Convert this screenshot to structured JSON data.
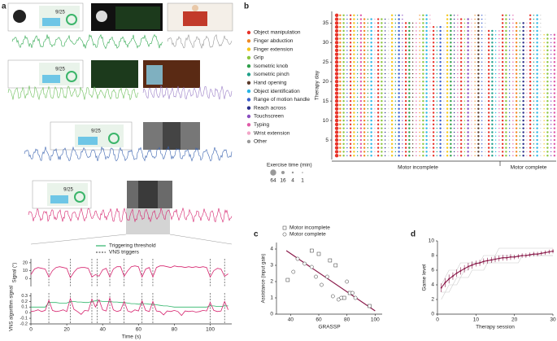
{
  "chart_data": [
    {
      "type": "timeseries",
      "panel": "a",
      "thumb_scores": [
        "9/25",
        "9/25",
        "9/25",
        "9/25"
      ],
      "xlabel": "Time (s)",
      "xlim": [
        0,
        112
      ],
      "xticks": [
        0,
        20,
        40,
        60,
        80,
        100
      ],
      "x": [
        0,
        2,
        4,
        6,
        8,
        10,
        12,
        14,
        16,
        18,
        20,
        22,
        24,
        26,
        28,
        30,
        32,
        34,
        36,
        38,
        40,
        42,
        44,
        46,
        48,
        50,
        52,
        54,
        56,
        58,
        60,
        62,
        64,
        66,
        68,
        70,
        72,
        74,
        76,
        78,
        80,
        82,
        84,
        86,
        88,
        90,
        92,
        94,
        96,
        98,
        100,
        102,
        104,
        106,
        108,
        110
      ],
      "triggers_name": "VNS triggers",
      "triggers": [
        10,
        22,
        34,
        37,
        44,
        52,
        62,
        68,
        100,
        108
      ],
      "subplots": [
        {
          "ylabel": "Signal (°)",
          "ylim": [
            -10,
            25
          ],
          "yticks": [
            0,
            10,
            20
          ],
          "series": [
            {
              "color": "#d6246e",
              "values": [
                5,
                12,
                14,
                13,
                12,
                2,
                10,
                14,
                15,
                14,
                13,
                1,
                8,
                13,
                14,
                14,
                13,
                2,
                5,
                3,
                11,
                13,
                2,
                12,
                15,
                15,
                3,
                10,
                15,
                16,
                15,
                2,
                12,
                14,
                2,
                14,
                16,
                16,
                15,
                14,
                16,
                15,
                15,
                14,
                15,
                14,
                15,
                14,
                15,
                14,
                2,
                10,
                13,
                12,
                3,
                6
              ]
            }
          ]
        },
        {
          "ylabel": "VNS algorithm signal",
          "ylim": [
            -0.2,
            0.35
          ],
          "yticks": [
            -0.2,
            -0.1,
            0,
            0.1,
            0.2,
            0.3
          ],
          "series": [
            {
              "name": "Triggering threshold",
              "color": "#2fb56a",
              "values": [
                0.1,
                0.1,
                0.1,
                0.1,
                0.1,
                0.18,
                0.18,
                0.18,
                0.17,
                0.17,
                0.17,
                0.2,
                0.2,
                0.19,
                0.19,
                0.18,
                0.18,
                0.2,
                0.21,
                0.21,
                0.2,
                0.2,
                0.2,
                0.19,
                0.19,
                0.18,
                0.18,
                0.17,
                0.16,
                0.16,
                0.15,
                0.16,
                0.16,
                0.15,
                0.15,
                0.14,
                0.13,
                0.12,
                0.12,
                0.11,
                0.1,
                0.1,
                0.1,
                0.1,
                0.1,
                0.1,
                0.1,
                0.1,
                0.1,
                0.1,
                0.12,
                0.12,
                0.11,
                0.11,
                0.12,
                0.12
              ]
            },
            {
              "color": "#d6246e",
              "values": [
                0.02,
                0.03,
                0.05,
                0.02,
                0.04,
                0.22,
                0.04,
                0.02,
                0.03,
                0.05,
                0.02,
                0.25,
                0.06,
                0.02,
                -0.03,
                0.04,
                0.03,
                0.24,
                0.1,
                0.23,
                0.05,
                0.03,
                0.26,
                0.05,
                0.02,
                0.04,
                0.2,
                0.03,
                0.01,
                0.05,
                0.03,
                0.21,
                0.04,
                0.02,
                0.2,
                0.03,
                0.02,
                -0.04,
                0.03,
                0.02,
                0.04,
                0.02,
                -0.05,
                0.03,
                0.02,
                0.03,
                0.01,
                0.02,
                0.04,
                0.03,
                0.18,
                0.04,
                0.02,
                0.03,
                0.2,
                0.05
              ]
            }
          ]
        }
      ]
    },
    {
      "type": "dotmatrix",
      "panel": "b",
      "ylabel": "Therapy day",
      "ylim": [
        0,
        38
      ],
      "yticks": [
        5,
        10,
        15,
        20,
        25,
        30,
        35
      ],
      "series": [
        {
          "name": "Object manipulation",
          "color": "#e8332a"
        },
        {
          "name": "Finger abduction",
          "color": "#f08a24"
        },
        {
          "name": "Finger extension",
          "color": "#f5c518"
        },
        {
          "name": "Grip",
          "color": "#8cc63f"
        },
        {
          "name": "Isometric knob",
          "color": "#2e9e4a"
        },
        {
          "name": "Isometric pinch",
          "color": "#1fa08a"
        },
        {
          "name": "Hand opening",
          "color": "#5a3a2a"
        },
        {
          "name": "Object identification",
          "color": "#29b6e6"
        },
        {
          "name": "Range of motion handle",
          "color": "#3a5fcd"
        },
        {
          "name": "Reach across",
          "color": "#2a2f8a"
        },
        {
          "name": "Touchscreen",
          "color": "#8a4fc0"
        },
        {
          "name": "Typing",
          "color": "#e05aa8"
        },
        {
          "name": "Wrist extension",
          "color": "#f2a6c8"
        },
        {
          "name": "Other",
          "color": "#9a9a9a"
        }
      ],
      "size_legend": {
        "title": "Exercise time (min)",
        "sizes": [
          64,
          16,
          4,
          1
        ]
      },
      "groups": [
        {
          "label": "Motor incomplete",
          "patients": [
            {
              "days": 37,
              "exercises": [
                0,
                1,
                3,
                8
              ],
              "minutes": [
                64,
                16,
                16,
                4
              ]
            },
            {
              "days": 37,
              "exercises": [
                0,
                2,
                5,
                11
              ],
              "minutes": [
                16,
                16,
                4,
                16
              ]
            },
            {
              "days": 36,
              "exercises": [
                1,
                4,
                7,
                12
              ],
              "minutes": [
                16,
                4,
                16,
                4
              ]
            },
            {
              "days": 36,
              "exercises": [
                0,
                3,
                9,
                13
              ],
              "minutes": [
                16,
                16,
                4,
                1
              ]
            },
            {
              "days": 37,
              "exercises": [
                2,
                5,
                8,
                10
              ],
              "minutes": [
                16,
                4,
                16,
                4
              ]
            },
            {
              "days": 35,
              "exercises": [
                0,
                4,
                6,
                11
              ],
              "minutes": [
                16,
                16,
                4,
                4
              ]
            },
            {
              "days": 37,
              "exercises": [
                1,
                3,
                7,
                12
              ],
              "minutes": [
                4,
                16,
                16,
                4
              ]
            },
            {
              "days": 34,
              "exercises": [
                0,
                5,
                8,
                13
              ],
              "minutes": [
                16,
                4,
                16,
                1
              ]
            },
            {
              "days": 37,
              "exercises": [
                2,
                4,
                9,
                11
              ],
              "minutes": [
                16,
                16,
                4,
                4
              ]
            },
            {
              "days": 36,
              "exercises": [
                0,
                3,
                10,
                12
              ],
              "minutes": [
                16,
                4,
                16,
                4
              ]
            },
            {
              "days": 37,
              "exercises": [
                1,
                6,
                8,
                13
              ],
              "minutes": [
                4,
                16,
                4,
                1
              ]
            },
            {
              "days": 33,
              "exercises": [
                0,
                5,
                7,
                11
              ],
              "minutes": [
                16,
                16,
                4,
                4
              ]
            }
          ]
        },
        {
          "label": "Motor complete",
          "patients": [
            {
              "days": 37,
              "exercises": [
                0,
                3,
                8,
                11
              ],
              "minutes": [
                16,
                16,
                4,
                4
              ]
            },
            {
              "days": 35,
              "exercises": [
                1,
                4,
                9,
                12
              ],
              "minutes": [
                16,
                4,
                16,
                4
              ]
            },
            {
              "days": 37,
              "exercises": [
                0,
                5,
                7,
                13
              ],
              "minutes": [
                16,
                4,
                16,
                1
              ]
            },
            {
              "days": 32,
              "exercises": [
                2,
                3,
                10,
                11
              ],
              "minutes": [
                4,
                16,
                4,
                16
              ]
            }
          ]
        }
      ]
    },
    {
      "type": "scatter",
      "panel": "c",
      "xlabel": "GRASSP",
      "ylabel": "Assistance (input gain)",
      "xlim": [
        30,
        105
      ],
      "xticks": [
        40,
        60,
        80,
        100
      ],
      "ylim": [
        0,
        4.4
      ],
      "yticks": [
        0,
        1,
        2,
        3,
        4
      ],
      "series": [
        {
          "name": "Motor incomplete",
          "marker": "square",
          "x": [
            38,
            55,
            60,
            68,
            72,
            78,
            82,
            96
          ],
          "values": [
            2.1,
            3.9,
            3.7,
            3.3,
            3.0,
            1.0,
            1.3,
            0.5
          ]
        },
        {
          "name": "Motor complete",
          "marker": "circle",
          "x": [
            42,
            45,
            50,
            55,
            58,
            62,
            66,
            70,
            74,
            76,
            80,
            84,
            86
          ],
          "values": [
            2.6,
            3.4,
            3.1,
            2.9,
            2.3,
            1.8,
            2.3,
            1.1,
            0.9,
            1.0,
            2.0,
            1.3,
            1.0
          ]
        }
      ],
      "trendline": {
        "color": "#8a1a4a",
        "x": [
          37,
          100
        ],
        "y": [
          3.9,
          0.2
        ]
      }
    },
    {
      "type": "line",
      "panel": "d",
      "xlabel": "Therapy session",
      "ylabel": "Game level",
      "xlim": [
        0,
        30
      ],
      "xticks": [
        0,
        10,
        20,
        30
      ],
      "ylim": [
        0,
        10
      ],
      "yticks": [
        0,
        2,
        4,
        6,
        8,
        10
      ],
      "x": [
        1,
        2,
        3,
        4,
        5,
        6,
        7,
        8,
        9,
        10,
        11,
        12,
        13,
        14,
        15,
        16,
        17,
        18,
        19,
        20,
        21,
        22,
        23,
        24,
        25,
        26,
        27,
        28,
        29,
        30
      ],
      "series": [
        {
          "color": "#cccccc",
          "values": [
            2,
            3,
            3,
            4,
            5,
            5,
            6,
            6,
            7,
            7,
            7,
            8,
            8,
            8,
            8,
            9,
            9,
            9,
            9,
            9,
            9,
            9,
            9,
            9,
            9,
            9,
            9,
            9,
            9,
            9
          ]
        },
        {
          "color": "#cccccc",
          "values": [
            4,
            5,
            6,
            6,
            6,
            7,
            7,
            7,
            7,
            7,
            7,
            7,
            7,
            7,
            8,
            8,
            8,
            8,
            8,
            8,
            8,
            8,
            8,
            8,
            8,
            8,
            8,
            8,
            8,
            8
          ]
        },
        {
          "color": "#cccccc",
          "values": [
            3,
            3,
            4,
            4,
            4,
            5,
            5,
            5,
            6,
            6,
            6,
            6,
            7,
            7,
            7,
            7,
            7,
            7,
            7,
            7,
            7,
            8,
            8,
            8,
            8,
            8,
            8,
            8,
            8,
            8
          ]
        },
        {
          "color": "#8a1a4a",
          "values": [
            3.6,
            4.3,
            4.8,
            5.2,
            5.6,
            5.9,
            6.2,
            6.5,
            6.7,
            6.9,
            7.0,
            7.2,
            7.3,
            7.4,
            7.5,
            7.6,
            7.7,
            7.7,
            7.8,
            7.8,
            7.9,
            8.0,
            8.0,
            8.1,
            8.2,
            8.2,
            8.3,
            8.4,
            8.5,
            8.6
          ],
          "errors": [
            0.6,
            0.6,
            0.6,
            0.5,
            0.5,
            0.5,
            0.5,
            0.5,
            0.5,
            0.4,
            0.4,
            0.4,
            0.4,
            0.4,
            0.4,
            0.4,
            0.4,
            0.4,
            0.4,
            0.3,
            0.3,
            0.3,
            0.3,
            0.3,
            0.3,
            0.3,
            0.3,
            0.3,
            0.3,
            0.3
          ]
        }
      ]
    }
  ]
}
